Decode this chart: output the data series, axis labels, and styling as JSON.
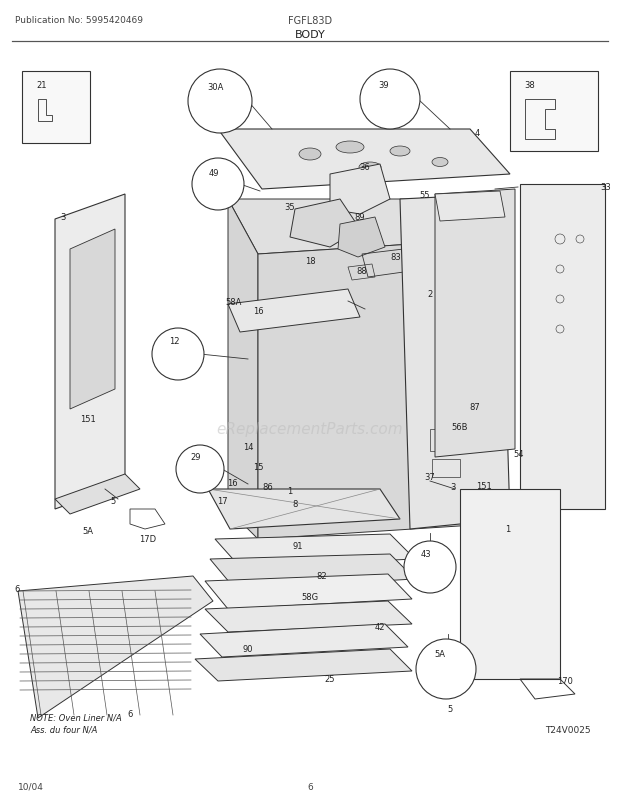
{
  "title": "BODY",
  "pub_no": "Publication No: 5995420469",
  "model": "FGFL83D",
  "date": "10/04",
  "page": "6",
  "watermark": "eReplacementParts.com",
  "note_line1": "NOTE: Oven Liner N/A",
  "note_line2": "Ass. du four N/A",
  "diagram_id": "T24V0025",
  "bg_color": "#ffffff",
  "lc": "#333333"
}
